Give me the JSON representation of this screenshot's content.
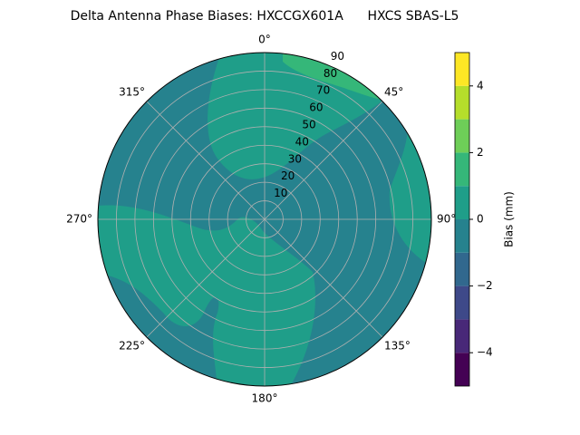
{
  "chart_data": {
    "type": "polar_contour",
    "title": "Delta Antenna Phase Biases: HXCCGX601A      HXCS SBAS-L5",
    "direction": "clockwise",
    "theta_zero": "N",
    "thetaticks": [
      {
        "value": 0,
        "label": "0°"
      },
      {
        "value": 45,
        "label": "45°"
      },
      {
        "value": 90,
        "label": "90°"
      },
      {
        "value": 135,
        "label": "135°"
      },
      {
        "value": 180,
        "label": "180°"
      },
      {
        "value": 225,
        "label": "225°"
      },
      {
        "value": 270,
        "label": "270°"
      },
      {
        "value": 315,
        "label": "315°"
      }
    ],
    "rlim": [
      0,
      90
    ],
    "rticks": [
      10,
      20,
      30,
      40,
      50,
      60,
      70,
      80,
      90
    ],
    "rlabel_angle": 22.5,
    "grid": true,
    "levels": [
      -5,
      -4,
      -3,
      -2,
      -1,
      0,
      1,
      2,
      3,
      4,
      5
    ],
    "colors": [
      "#440154",
      "#482878",
      "#3e4989",
      "#31688e",
      "#26828e",
      "#1f9e89",
      "#35b779",
      "#6ece58",
      "#b5de2b",
      "#fde725"
    ],
    "clim": [
      -5,
      5
    ],
    "cticks": [
      {
        "value": -4,
        "label": "−4"
      },
      {
        "value": -2,
        "label": "−2"
      },
      0,
      2,
      4
    ],
    "clabel": "Bias (mm)"
  }
}
